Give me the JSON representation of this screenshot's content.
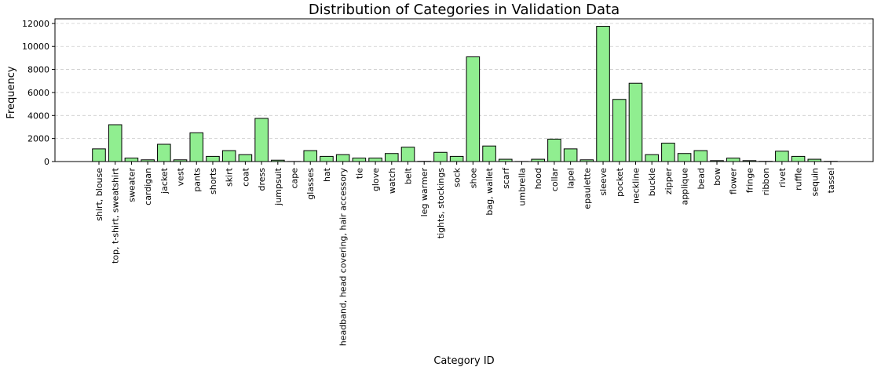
{
  "chart_data": {
    "type": "bar",
    "title": "Distribution of Categories in Validation Data",
    "xlabel": "Category ID",
    "ylabel": "Frequency",
    "ylim": [
      0,
      12400
    ],
    "yticks": [
      0,
      2000,
      4000,
      6000,
      8000,
      10000,
      12000
    ],
    "grid": "horizontal dashed",
    "bar_color": "#90ee90",
    "bar_edge_color": "#000000",
    "categories": [
      "shirt, blouse",
      "top, t-shirt, sweatshirt",
      "sweater",
      "cardigan",
      "jacket",
      "vest",
      "pants",
      "shorts",
      "skirt",
      "coat",
      "dress",
      "jumpsuit",
      "cape",
      "glasses",
      "hat",
      "headband, head covering, hair accessory",
      "tie",
      "glove",
      "watch",
      "belt",
      "leg warmer",
      "tights, stockings",
      "sock",
      "shoe",
      "bag, wallet",
      "scarf",
      "umbrella",
      "hood",
      "collar",
      "lapel",
      "epaulette",
      "sleeve",
      "pocket",
      "neckline",
      "buckle",
      "zipper",
      "applique",
      "bead",
      "bow",
      "flower",
      "fringe",
      "ribbon",
      "rivet",
      "ruffle",
      "sequin",
      "tassel"
    ],
    "values": [
      1100,
      3200,
      300,
      150,
      1500,
      150,
      2500,
      450,
      950,
      600,
      3750,
      120,
      10,
      950,
      450,
      600,
      300,
      300,
      700,
      1250,
      20,
      800,
      450,
      9100,
      1350,
      200,
      10,
      200,
      1950,
      1100,
      150,
      11750,
      5400,
      6800,
      600,
      1600,
      700,
      950,
      80,
      300,
      80,
      20,
      900,
      450,
      200,
      20
    ]
  }
}
